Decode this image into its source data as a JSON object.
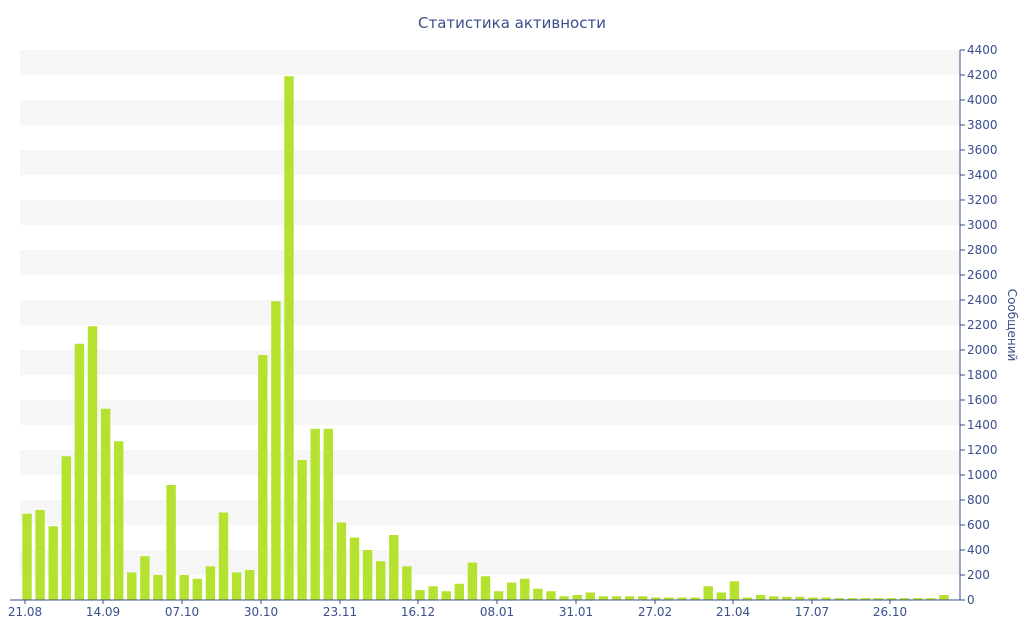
{
  "chart_data": {
    "type": "bar",
    "title": "Статистика активности",
    "ylabel": "Сообщений",
    "ylim": [
      0,
      4400
    ],
    "y_ticks": [
      0,
      200,
      400,
      600,
      800,
      1000,
      1200,
      1400,
      1600,
      1800,
      2000,
      2200,
      2400,
      2600,
      2800,
      3000,
      3200,
      3400,
      3600,
      3800,
      4000,
      4200,
      4400
    ],
    "x_tick_labels": [
      "21.08",
      "14.09",
      "07.10",
      "30.10",
      "23.11",
      "16.12",
      "08.01",
      "31.01",
      "27.02",
      "21.04",
      "17.07",
      "26.10"
    ],
    "bar_color": "#b5e22e",
    "stripe_color": "#f6f6f6",
    "axis_color": "#3a4f8c",
    "values": [
      690,
      720,
      590,
      1150,
      2050,
      2190,
      1530,
      1270,
      220,
      350,
      200,
      920,
      200,
      170,
      270,
      700,
      220,
      240,
      1960,
      2390,
      4190,
      1120,
      1370,
      1370,
      620,
      500,
      400,
      310,
      520,
      270,
      80,
      110,
      70,
      130,
      300,
      190,
      70,
      140,
      170,
      90,
      70,
      30,
      40,
      60,
      30,
      30,
      30,
      30,
      20,
      20,
      20,
      20,
      110,
      60,
      150,
      20,
      40,
      30,
      25,
      25,
      20,
      20,
      15,
      15,
      15,
      15,
      15,
      15,
      15,
      15,
      40
    ]
  }
}
